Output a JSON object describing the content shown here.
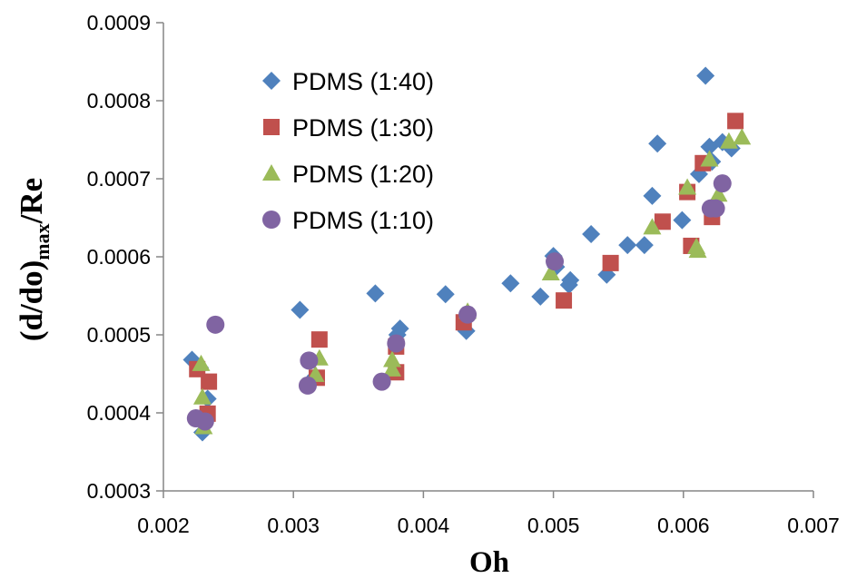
{
  "chart_data": {
    "type": "scatter",
    "title": "",
    "xlabel": "Oh",
    "ylabel_main": "(d/do)",
    "ylabel_sub": "max",
    "ylabel_tail": "/Re",
    "xlim": [
      0.002,
      0.007
    ],
    "ylim": [
      0.0003,
      0.0009
    ],
    "x_ticks": [
      "0.002",
      "0.003",
      "0.004",
      "0.005",
      "0.006",
      "0.007"
    ],
    "y_ticks": [
      "0.0003",
      "0.0004",
      "0.0005",
      "0.0006",
      "0.0007",
      "0.0008",
      "0.0009"
    ],
    "grid": false,
    "legend_position": "top-left",
    "series": [
      {
        "name": "PDMS (1:40)",
        "marker": "diamond",
        "color": "#4f81bd",
        "points": [
          [
            0.00222,
            0.000468
          ],
          [
            0.00228,
            0.000458
          ],
          [
            0.0023,
            0.000375
          ],
          [
            0.00234,
            0.000418
          ],
          [
            0.00305,
            0.000532
          ],
          [
            0.00317,
            0.000447
          ],
          [
            0.00363,
            0.000553
          ],
          [
            0.0038,
            0.0005
          ],
          [
            0.00382,
            0.000508
          ],
          [
            0.00417,
            0.000552
          ],
          [
            0.00433,
            0.000505
          ],
          [
            0.00467,
            0.000566
          ],
          [
            0.0049,
            0.000549
          ],
          [
            0.005,
            0.000601
          ],
          [
            0.00502,
            0.000587
          ],
          [
            0.00512,
            0.000564
          ],
          [
            0.00513,
            0.00057
          ],
          [
            0.00529,
            0.000629
          ],
          [
            0.00541,
            0.000577
          ],
          [
            0.00557,
            0.000615
          ],
          [
            0.0057,
            0.000615
          ],
          [
            0.00576,
            0.000678
          ],
          [
            0.0058,
            0.000745
          ],
          [
            0.00599,
            0.000647
          ],
          [
            0.00612,
            0.000706
          ],
          [
            0.00617,
            0.000832
          ],
          [
            0.0062,
            0.000741
          ],
          [
            0.00622,
            0.000722
          ],
          [
            0.0063,
            0.000747
          ],
          [
            0.00637,
            0.000739
          ]
        ]
      },
      {
        "name": "PDMS (1:30)",
        "marker": "square",
        "color": "#c0504d",
        "points": [
          [
            0.00226,
            0.000456
          ],
          [
            0.00235,
            0.00044
          ],
          [
            0.00234,
            0.000399
          ],
          [
            0.00318,
            0.000445
          ],
          [
            0.0032,
            0.000494
          ],
          [
            0.00379,
            0.000452
          ],
          [
            0.00379,
            0.000485
          ],
          [
            0.00431,
            0.000516
          ],
          [
            0.00508,
            0.000544
          ],
          [
            0.00544,
            0.000592
          ],
          [
            0.00584,
            0.000645
          ],
          [
            0.00603,
            0.000683
          ],
          [
            0.00606,
            0.000614
          ],
          [
            0.00615,
            0.00072
          ],
          [
            0.00622,
            0.000651
          ],
          [
            0.0064,
            0.000774
          ]
        ]
      },
      {
        "name": "PDMS (1:20)",
        "marker": "triangle",
        "color": "#9bbb59",
        "points": [
          [
            0.00229,
            0.000463
          ],
          [
            0.0023,
            0.00042
          ],
          [
            0.00231,
            0.000382
          ],
          [
            0.00317,
            0.000449
          ],
          [
            0.0032,
            0.00047
          ],
          [
            0.00376,
            0.000456
          ],
          [
            0.00376,
            0.000468
          ],
          [
            0.00434,
            0.00053
          ],
          [
            0.00498,
            0.000579
          ],
          [
            0.00576,
            0.000638
          ],
          [
            0.00603,
            0.000689
          ],
          [
            0.0061,
            0.000613
          ],
          [
            0.00611,
            0.000608
          ],
          [
            0.0062,
            0.000725
          ],
          [
            0.00627,
            0.00068
          ],
          [
            0.00635,
            0.000748
          ],
          [
            0.00645,
            0.000753
          ]
        ]
      },
      {
        "name": "PDMS (1:10)",
        "marker": "circle",
        "color": "#8064a2",
        "points": [
          [
            0.00225,
            0.000393
          ],
          [
            0.00232,
            0.000389
          ],
          [
            0.0024,
            0.000513
          ],
          [
            0.00311,
            0.000435
          ],
          [
            0.00312,
            0.000467
          ],
          [
            0.00368,
            0.00044
          ],
          [
            0.00379,
            0.000489
          ],
          [
            0.00434,
            0.000526
          ],
          [
            0.00501,
            0.000594
          ],
          [
            0.00621,
            0.000662
          ],
          [
            0.00625,
            0.000662
          ],
          [
            0.0063,
            0.000694
          ]
        ]
      }
    ]
  }
}
